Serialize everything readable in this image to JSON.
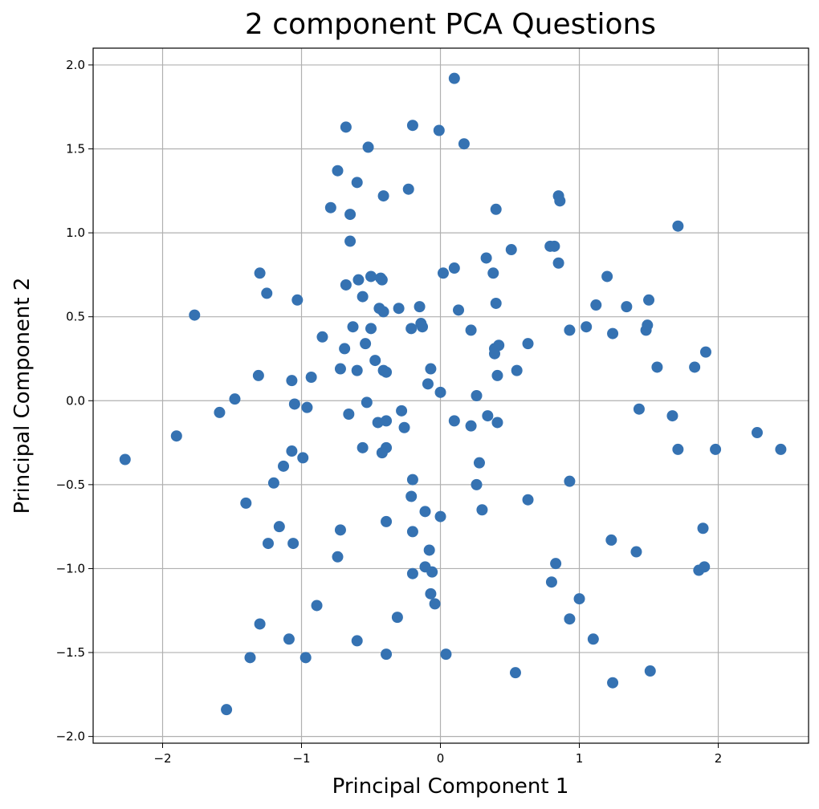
{
  "chart_data": {
    "type": "scatter",
    "title": "2 component PCA Questions",
    "xlabel": "Principal Component 1",
    "ylabel": "Principal Component 2",
    "xlim": [
      -2.5,
      2.65
    ],
    "ylim": [
      -2.04,
      2.1
    ],
    "xticks": [
      -2,
      -1,
      0,
      1,
      2
    ],
    "yticks": [
      -2.0,
      -1.5,
      -1.0,
      -0.5,
      0.0,
      0.5,
      1.0,
      1.5,
      2.0
    ],
    "xtick_labels": [
      "−2",
      "−1",
      "0",
      "1",
      "2"
    ],
    "ytick_labels": [
      "−2.0",
      "−1.5",
      "−1.0",
      "−0.5",
      "0.0",
      "0.5",
      "1.0",
      "1.5",
      "2.0"
    ],
    "grid": true,
    "color": "#3572b2",
    "points": [
      [
        0.1,
        1.92
      ],
      [
        -0.68,
        1.63
      ],
      [
        -0.2,
        1.64
      ],
      [
        -0.01,
        1.61
      ],
      [
        -0.52,
        1.51
      ],
      [
        0.17,
        1.53
      ],
      [
        -0.74,
        1.37
      ],
      [
        -0.6,
        1.3
      ],
      [
        -0.41,
        1.22
      ],
      [
        -0.23,
        1.26
      ],
      [
        -0.79,
        1.15
      ],
      [
        -0.65,
        1.11
      ],
      [
        0.4,
        1.14
      ],
      [
        0.85,
        1.22
      ],
      [
        0.86,
        1.19
      ],
      [
        1.71,
        1.04
      ],
      [
        -0.65,
        0.95
      ],
      [
        0.79,
        0.92
      ],
      [
        0.82,
        0.92
      ],
      [
        0.51,
        0.9
      ],
      [
        0.33,
        0.85
      ],
      [
        0.85,
        0.82
      ],
      [
        -1.3,
        0.76
      ],
      [
        0.1,
        0.79
      ],
      [
        0.02,
        0.76
      ],
      [
        0.38,
        0.76
      ],
      [
        1.2,
        0.74
      ],
      [
        -0.5,
        0.74
      ],
      [
        -0.43,
        0.73
      ],
      [
        -0.59,
        0.72
      ],
      [
        -0.42,
        0.72
      ],
      [
        -0.68,
        0.69
      ],
      [
        -1.25,
        0.64
      ],
      [
        -0.56,
        0.62
      ],
      [
        -1.03,
        0.6
      ],
      [
        1.5,
        0.6
      ],
      [
        0.4,
        0.58
      ],
      [
        1.12,
        0.57
      ],
      [
        1.34,
        0.56
      ],
      [
        -0.15,
        0.56
      ],
      [
        -0.3,
        0.55
      ],
      [
        -0.44,
        0.55
      ],
      [
        0.13,
        0.54
      ],
      [
        -0.41,
        0.53
      ],
      [
        -1.77,
        0.51
      ],
      [
        1.49,
        0.45
      ],
      [
        1.05,
        0.44
      ],
      [
        -0.63,
        0.44
      ],
      [
        -0.14,
        0.46
      ],
      [
        -0.13,
        0.44
      ],
      [
        -0.5,
        0.43
      ],
      [
        -0.21,
        0.43
      ],
      [
        0.22,
        0.42
      ],
      [
        0.93,
        0.42
      ],
      [
        1.48,
        0.42
      ],
      [
        1.24,
        0.4
      ],
      [
        -0.85,
        0.38
      ],
      [
        -0.54,
        0.34
      ],
      [
        0.63,
        0.34
      ],
      [
        0.42,
        0.33
      ],
      [
        0.39,
        0.31
      ],
      [
        -0.69,
        0.31
      ],
      [
        0.39,
        0.28
      ],
      [
        1.91,
        0.29
      ],
      [
        -0.47,
        0.24
      ],
      [
        -0.72,
        0.19
      ],
      [
        -0.6,
        0.18
      ],
      [
        -0.41,
        0.18
      ],
      [
        -0.39,
        0.17
      ],
      [
        -0.07,
        0.19
      ],
      [
        0.55,
        0.18
      ],
      [
        1.56,
        0.2
      ],
      [
        1.83,
        0.2
      ],
      [
        -1.31,
        0.15
      ],
      [
        -0.93,
        0.14
      ],
      [
        -1.07,
        0.12
      ],
      [
        0.41,
        0.15
      ],
      [
        -0.09,
        0.1
      ],
      [
        0.0,
        0.05
      ],
      [
        0.26,
        0.03
      ],
      [
        -1.48,
        0.01
      ],
      [
        -0.53,
        -0.01
      ],
      [
        -1.05,
        -0.02
      ],
      [
        -0.96,
        -0.04
      ],
      [
        -1.59,
        -0.07
      ],
      [
        -0.28,
        -0.06
      ],
      [
        -0.66,
        -0.08
      ],
      [
        1.67,
        -0.09
      ],
      [
        1.43,
        -0.05
      ],
      [
        0.34,
        -0.09
      ],
      [
        0.1,
        -0.12
      ],
      [
        0.41,
        -0.13
      ],
      [
        -0.45,
        -0.13
      ],
      [
        -0.39,
        -0.12
      ],
      [
        -0.26,
        -0.16
      ],
      [
        0.22,
        -0.15
      ],
      [
        -1.9,
        -0.21
      ],
      [
        2.28,
        -0.19
      ],
      [
        -0.56,
        -0.28
      ],
      [
        -0.39,
        -0.28
      ],
      [
        -0.42,
        -0.31
      ],
      [
        -1.07,
        -0.3
      ],
      [
        1.71,
        -0.29
      ],
      [
        1.98,
        -0.29
      ],
      [
        2.45,
        -0.29
      ],
      [
        -2.27,
        -0.35
      ],
      [
        -0.99,
        -0.34
      ],
      [
        0.28,
        -0.37
      ],
      [
        -1.13,
        -0.39
      ],
      [
        -0.2,
        -0.47
      ],
      [
        0.93,
        -0.48
      ],
      [
        -1.2,
        -0.49
      ],
      [
        0.26,
        -0.5
      ],
      [
        -0.21,
        -0.57
      ],
      [
        -1.4,
        -0.61
      ],
      [
        0.63,
        -0.59
      ],
      [
        0.3,
        -0.65
      ],
      [
        -0.11,
        -0.66
      ],
      [
        0.0,
        -0.69
      ],
      [
        -0.39,
        -0.72
      ],
      [
        -1.16,
        -0.75
      ],
      [
        -0.72,
        -0.77
      ],
      [
        -0.2,
        -0.78
      ],
      [
        1.89,
        -0.76
      ],
      [
        1.23,
        -0.83
      ],
      [
        -1.24,
        -0.85
      ],
      [
        -1.06,
        -0.85
      ],
      [
        -0.08,
        -0.89
      ],
      [
        -0.74,
        -0.93
      ],
      [
        1.41,
        -0.9
      ],
      [
        0.83,
        -0.97
      ],
      [
        -0.11,
        -0.99
      ],
      [
        -0.06,
        -1.02
      ],
      [
        -0.2,
        -1.03
      ],
      [
        1.86,
        -1.01
      ],
      [
        1.9,
        -0.99
      ],
      [
        0.8,
        -1.08
      ],
      [
        -0.07,
        -1.15
      ],
      [
        -0.04,
        -1.21
      ],
      [
        1.0,
        -1.18
      ],
      [
        -0.89,
        -1.22
      ],
      [
        -0.31,
        -1.29
      ],
      [
        0.93,
        -1.3
      ],
      [
        -1.3,
        -1.33
      ],
      [
        -1.09,
        -1.42
      ],
      [
        -0.6,
        -1.43
      ],
      [
        1.1,
        -1.42
      ],
      [
        -0.39,
        -1.51
      ],
      [
        0.04,
        -1.51
      ],
      [
        -1.37,
        -1.53
      ],
      [
        -0.97,
        -1.53
      ],
      [
        0.54,
        -1.62
      ],
      [
        1.51,
        -1.61
      ],
      [
        1.24,
        -1.68
      ],
      [
        -1.54,
        -1.84
      ]
    ]
  }
}
